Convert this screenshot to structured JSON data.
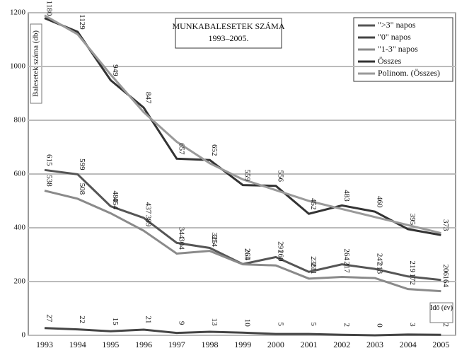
{
  "chart_data": {
    "type": "line",
    "title": "MUNKABALESETEK SZÁMA",
    "subtitle": "1993–2005.",
    "y_label": "Balesetek száma (db)",
    "x_label": "Idő (év)",
    "categories": [
      "1993",
      "1994",
      "1995",
      "1996",
      "1997",
      "1998",
      "1999",
      "2000",
      "2001",
      "2002",
      "2003",
      "2004",
      "2005"
    ],
    "series": [
      {
        "name": "\">3\" napos",
        "color": "#555555",
        "values": [
          615,
          599,
          480,
          437,
          344,
          325,
          265,
          291,
          236,
          264,
          247,
          219,
          206
        ]
      },
      {
        "name": "\"0\" napos",
        "color": "#444444",
        "values": [
          27,
          22,
          15,
          21,
          9,
          13,
          10,
          5,
          5,
          2,
          0,
          3,
          2
        ]
      },
      {
        "name": "\"1-3\" napos",
        "color": "#8a8a8a",
        "values": [
          538,
          508,
          454,
          389,
          304,
          314,
          264,
          260,
          211,
          217,
          213,
          172,
          164
        ]
      },
      {
        "name": "Összes",
        "color": "#333333",
        "values": [
          1180,
          1129,
          949,
          847,
          657,
          652,
          559,
          556,
          452,
          483,
          460,
          395,
          373
        ]
      },
      {
        "name": "Polinom. (Összes)",
        "color": "#9a9a9a",
        "values": [
          1190,
          1120,
          970,
          830,
          720,
          640,
          580,
          540,
          500,
          470,
          440,
          410,
          380
        ]
      }
    ],
    "label_series": [
      0,
      1,
      2,
      3
    ],
    "ylim": [
      0,
      1200
    ],
    "yticks": [
      0,
      200,
      400,
      600,
      800,
      1000,
      1200
    ],
    "grid": true
  }
}
